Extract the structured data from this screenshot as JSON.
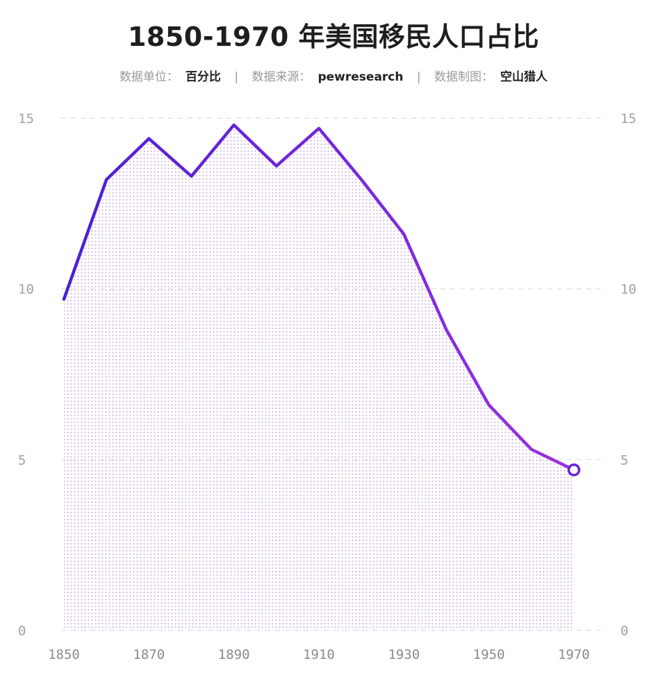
{
  "title": "1850-1970 年美国移民人口占比",
  "meta": {
    "unit_label": "数据单位：",
    "unit_value": "百分比",
    "source_label": "数据来源：",
    "source_value": "pewresearch",
    "author_label": "数据制图：",
    "author_value": "空山猎人",
    "separator": "|"
  },
  "colors": {
    "line_start": "#4a1fd4",
    "line_end": "#9b30e0",
    "fill_dot": "#c9a8e6",
    "grid": "#dddddd",
    "end_marker": "#6a22d8"
  },
  "chart_data": {
    "type": "area",
    "title": "1850-1970 年美国移民人口占比",
    "xlabel": "",
    "ylabel": "",
    "x": [
      1850,
      1860,
      1870,
      1880,
      1890,
      1900,
      1910,
      1920,
      1930,
      1940,
      1950,
      1960,
      1970
    ],
    "values": [
      9.7,
      13.2,
      14.4,
      13.3,
      14.8,
      13.6,
      14.7,
      13.2,
      11.6,
      8.8,
      6.6,
      5.3,
      4.7
    ],
    "xlim": [
      1850,
      1970
    ],
    "ylim": [
      0,
      15
    ],
    "x_ticks": [
      "1850",
      "1870",
      "1890",
      "1910",
      "1930",
      "1950",
      "1970"
    ],
    "y_ticks": [
      "0",
      "5",
      "10",
      "15"
    ],
    "grid": true,
    "end_marker": true
  }
}
